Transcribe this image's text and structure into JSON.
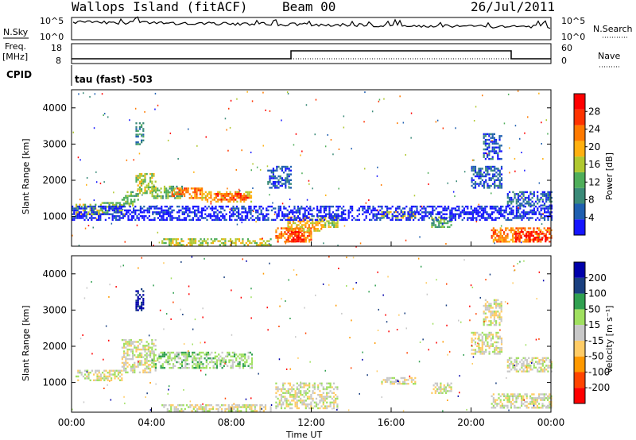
{
  "header": {
    "station": "Wallops Island (fitACF)",
    "beam": "Beam 00",
    "date": "26/Jul/2011"
  },
  "labels": {
    "nsky": "N.Sky",
    "nsearch": "N.Search",
    "freq": "Freq.",
    "freq_unit": "[MHz]",
    "cpid": "CPID",
    "nave": "Nave",
    "cpid_name": "tau (fast) -503",
    "exp_top": "10^5",
    "exp_bottom": "10^0",
    "freq_top": "18",
    "freq_bottom": "8",
    "nave_top": "60",
    "nave_bottom": "0"
  },
  "colors": {
    "power": [
      "#1515ff",
      "#1f5fb0",
      "#3a8a78",
      "#4fae5a",
      "#b0c830",
      "#ffb010",
      "#ff7a00",
      "#ff3300",
      "#ff0000"
    ],
    "velocity": [
      "#ff0000",
      "#ff4400",
      "#ff9900",
      "#ffcc66",
      "#c8c8c8",
      "#a0e060",
      "#30a050",
      "#1a4080",
      "#0000aa"
    ]
  },
  "chart_data": [
    {
      "type": "heatmap",
      "name": "power",
      "ylabel": "Slant Range [km]",
      "xlabel": "Time UT",
      "colorbar_label": "Power [dB]",
      "colorbar_ticks": [
        "4",
        "8",
        "12",
        "16",
        "20",
        "24",
        "28"
      ],
      "x_ticks": [
        "00:00",
        "04:00",
        "08:00",
        "12:00",
        "16:00",
        "20:00",
        "00:00"
      ],
      "y_ticks": [
        "1000",
        "2000",
        "3000",
        "4000"
      ],
      "ylim": [
        180,
        4500
      ],
      "xlim_hours": [
        0,
        24
      ],
      "regions": [
        {
          "t0": 0.2,
          "t1": 1.6,
          "r0": 1050,
          "r1": 1350,
          "level": 4
        },
        {
          "t0": 1.5,
          "t1": 2.5,
          "r0": 1100,
          "r1": 1400,
          "level": 3
        },
        {
          "t0": 2.5,
          "t1": 3.3,
          "r0": 1300,
          "r1": 1700,
          "level": 3
        },
        {
          "t0": 3.2,
          "t1": 4.2,
          "r0": 1650,
          "r1": 2200,
          "level": 4
        },
        {
          "t0": 4.0,
          "t1": 5.5,
          "r0": 1500,
          "r1": 1850,
          "level": 3
        },
        {
          "t0": 5.0,
          "t1": 6.5,
          "r0": 1500,
          "r1": 1800,
          "level": 6
        },
        {
          "t0": 6.5,
          "t1": 9.0,
          "r0": 1400,
          "r1": 1700,
          "level": 5
        },
        {
          "t0": 7.2,
          "t1": 8.8,
          "r0": 1450,
          "r1": 1650,
          "level": 7
        },
        {
          "t0": 4.5,
          "t1": 10.0,
          "r0": 200,
          "r1": 400,
          "level": 4
        },
        {
          "t0": 10.2,
          "t1": 12.0,
          "r0": 300,
          "r1": 700,
          "level": 6
        },
        {
          "t0": 10.8,
          "t1": 11.6,
          "r0": 300,
          "r1": 600,
          "level": 8
        },
        {
          "t0": 10.8,
          "t1": 12.5,
          "r0": 600,
          "r1": 1000,
          "level": 5
        },
        {
          "t0": 12.4,
          "t1": 13.3,
          "r0": 700,
          "r1": 1000,
          "level": 4
        },
        {
          "t0": 15.5,
          "t1": 17.2,
          "r0": 950,
          "r1": 1150,
          "level": 4
        },
        {
          "t0": 18.0,
          "t1": 19.0,
          "r0": 700,
          "r1": 1000,
          "level": 3
        },
        {
          "t0": 21.0,
          "t1": 24.0,
          "r0": 300,
          "r1": 700,
          "level": 6
        },
        {
          "t0": 22.2,
          "t1": 23.8,
          "r0": 300,
          "r1": 600,
          "level": 8
        },
        {
          "t0": 20.0,
          "t1": 21.5,
          "r0": 1800,
          "r1": 2400,
          "level": 1
        },
        {
          "t0": 20.6,
          "t1": 21.5,
          "r0": 2600,
          "r1": 3300,
          "level": 1
        },
        {
          "t0": 21.8,
          "t1": 24.0,
          "r0": 1300,
          "r1": 1700,
          "level": 1
        },
        {
          "t0": 3.2,
          "t1": 3.6,
          "r0": 3000,
          "r1": 3600,
          "level": 2
        },
        {
          "t0": 9.8,
          "t1": 11.0,
          "r0": 1800,
          "r1": 2400,
          "level": 1
        },
        {
          "t0": 0.0,
          "t1": 24.0,
          "r0": 900,
          "r1": 1300,
          "level": 0
        }
      ]
    },
    {
      "type": "heatmap",
      "name": "velocity",
      "ylabel": "Slant Range [km]",
      "xlabel": "Time UT",
      "colorbar_label": "Velocity [m s⁻¹]",
      "colorbar_ticks": [
        "-200",
        "-100",
        "-50",
        "-15",
        "15",
        "50",
        "100",
        "200"
      ],
      "x_ticks": [
        "00:00",
        "04:00",
        "08:00",
        "12:00",
        "16:00",
        "20:00",
        "00:00"
      ],
      "y_ticks": [
        "1000",
        "2000",
        "3000",
        "4000"
      ],
      "ylim": [
        180,
        4500
      ],
      "xlim_hours": [
        0,
        24
      ],
      "regions": [
        {
          "t0": 0.2,
          "t1": 2.5,
          "r0": 1050,
          "r1": 1350,
          "level": 4
        },
        {
          "t0": 2.5,
          "t1": 4.2,
          "r0": 1300,
          "r1": 2200,
          "level": 4
        },
        {
          "t0": 4.0,
          "t1": 9.0,
          "r0": 1400,
          "r1": 1850,
          "level": 5
        },
        {
          "t0": 4.5,
          "t1": 10.0,
          "r0": 200,
          "r1": 400,
          "level": 4
        },
        {
          "t0": 10.2,
          "t1": 13.3,
          "r0": 300,
          "r1": 1000,
          "level": 4
        },
        {
          "t0": 15.5,
          "t1": 17.2,
          "r0": 950,
          "r1": 1150,
          "level": 4
        },
        {
          "t0": 18.0,
          "t1": 19.0,
          "r0": 700,
          "r1": 1000,
          "level": 4
        },
        {
          "t0": 21.0,
          "t1": 24.0,
          "r0": 300,
          "r1": 700,
          "level": 4
        },
        {
          "t0": 20.0,
          "t1": 21.5,
          "r0": 1800,
          "r1": 2400,
          "level": 4
        },
        {
          "t0": 20.6,
          "t1": 21.5,
          "r0": 2600,
          "r1": 3300,
          "level": 4
        },
        {
          "t0": 21.8,
          "t1": 24.0,
          "r0": 1300,
          "r1": 1700,
          "level": 4
        },
        {
          "t0": 3.2,
          "t1": 3.6,
          "r0": 3000,
          "r1": 3600,
          "level": 8
        }
      ]
    }
  ]
}
